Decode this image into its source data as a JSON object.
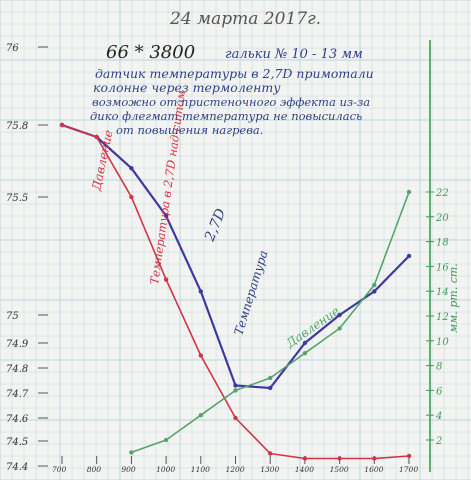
{
  "header": {
    "date": "24 марта 2017г.",
    "code": "66 * 3800",
    "subtitle": "гальки № 10 - 13 мм"
  },
  "notes": [
    "датчик температуры в 2,7D примотали",
    "колонне через термоленту",
    "возможно от пристеночного эффекта из-за",
    "дико флегмат температура не повысилась",
    "от повышения нагрева."
  ],
  "colors": {
    "paper": "#f3f4f1",
    "grid": "#b6d6df",
    "blue_series": "#3b3aa2",
    "red_series": "#d43345",
    "green_series": "#55a56a",
    "ink": "#333333",
    "axis_green": "#3e9b57"
  },
  "chart_data": {
    "type": "line",
    "x": [
      "700",
      "800",
      "900",
      "1000",
      "1100",
      "1200",
      "1300",
      "1400",
      "1500",
      "1600",
      "1700"
    ],
    "xlabel": "",
    "ylabel_left": "",
    "ylabel_right": "мм. рт. ст.",
    "yticks_left": [
      "76",
      "75.8",
      "75.5",
      "75",
      "74.9",
      "74.8",
      "74.7",
      "74.6",
      "74.5",
      "74.4"
    ],
    "yticks_right": [
      "2",
      "4",
      "6",
      "8",
      "10",
      "12",
      "14",
      "16",
      "18",
      "20",
      "22"
    ],
    "series": [
      {
        "name": "Температура 2,7D",
        "axis": "left",
        "points": [
          [
            700,
            75.8
          ],
          [
            800,
            75.75
          ],
          [
            900,
            75.62
          ],
          [
            1000,
            75.42
          ],
          [
            1100,
            75.1
          ],
          [
            1200,
            74.73
          ],
          [
            1300,
            74.72
          ],
          [
            1400,
            74.9
          ],
          [
            1500,
            75.0
          ],
          [
            1600,
            75.1
          ],
          [
            1700,
            75.25
          ]
        ]
      },
      {
        "name": "Температура в 2,7D над ситом",
        "axis": "left",
        "points": [
          [
            700,
            75.8
          ],
          [
            800,
            75.75
          ],
          [
            900,
            75.5
          ],
          [
            1000,
            75.15
          ],
          [
            1100,
            74.85
          ],
          [
            1200,
            74.6
          ],
          [
            1300,
            74.45
          ],
          [
            1400,
            74.43
          ],
          [
            1500,
            74.43
          ],
          [
            1600,
            74.43
          ],
          [
            1700,
            74.44
          ]
        ]
      },
      {
        "name": "Давление",
        "axis": "right",
        "points": [
          [
            900,
            1.0
          ],
          [
            1000,
            2.0
          ],
          [
            1100,
            4.0
          ],
          [
            1200,
            6.0
          ],
          [
            1300,
            7.0
          ],
          [
            1400,
            9.0
          ],
          [
            1500,
            11.0
          ],
          [
            1600,
            14.5
          ],
          [
            1700,
            22.0
          ]
        ]
      }
    ],
    "annotations": [
      "2,7D",
      "Давление",
      "Температура",
      "Давление",
      "Температура в 2,7D над ситом"
    ],
    "grid": true
  }
}
